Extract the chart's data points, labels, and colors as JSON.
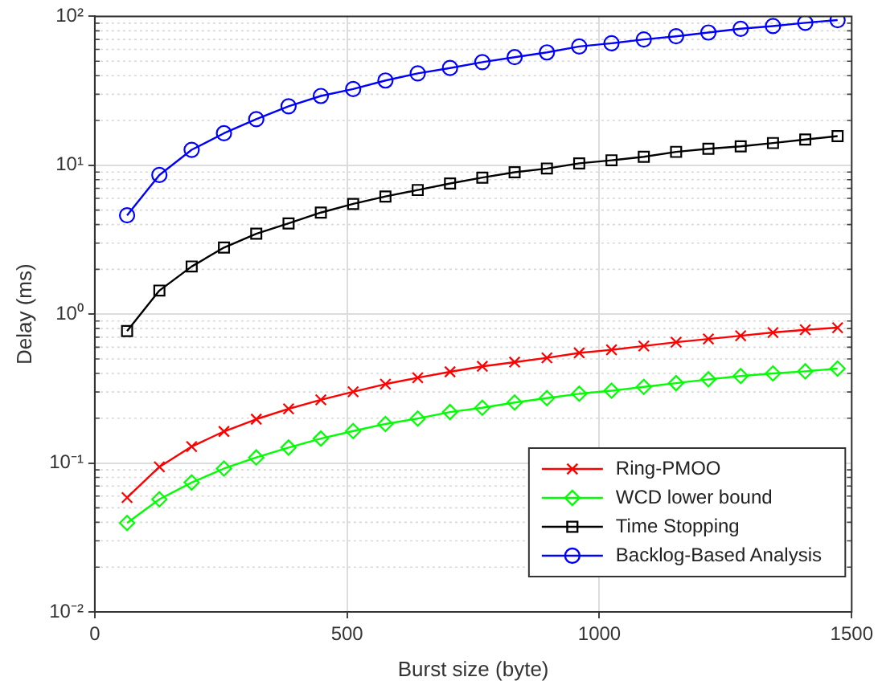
{
  "chart_data": {
    "type": "line",
    "xlabel": "Burst size (byte)",
    "ylabel": "Delay (ms)",
    "x": [
      64,
      128,
      192,
      256,
      320,
      384,
      448,
      512,
      576,
      640,
      704,
      768,
      832,
      896,
      960,
      1024,
      1088,
      1152,
      1216,
      1280,
      1344,
      1408,
      1472
    ],
    "xlim": [
      0,
      1500
    ],
    "xticks": [
      0,
      500,
      1000,
      1500
    ],
    "log": "y",
    "ylim": [
      0.01,
      100
    ],
    "yticks": [
      {
        "value": 0.01,
        "label": "10⁻²"
      },
      {
        "value": 0.1,
        "label": "10⁻¹"
      },
      {
        "value": 1,
        "label": "10⁰"
      },
      {
        "value": 10,
        "label": "10¹"
      },
      {
        "value": 100,
        "label": "10²"
      }
    ],
    "grid": true,
    "legend": "bottom right",
    "line_style": "solid",
    "series": [
      {
        "name": "Ring-PMOO",
        "color": "#ff0000",
        "marker": "cross",
        "values": [
          0.0586,
          0.0942,
          0.129,
          0.163,
          0.197,
          0.231,
          0.266,
          0.301,
          0.339,
          0.374,
          0.41,
          0.446,
          0.476,
          0.509,
          0.549,
          0.576,
          0.611,
          0.648,
          0.681,
          0.716,
          0.753,
          0.785,
          0.811
        ]
      },
      {
        "name": "WCD lower bound",
        "color": "#00ff00",
        "marker": "diamond",
        "values": [
          0.0396,
          0.0571,
          0.074,
          0.0918,
          0.109,
          0.127,
          0.146,
          0.164,
          0.183,
          0.199,
          0.22,
          0.235,
          0.255,
          0.273,
          0.292,
          0.306,
          0.325,
          0.344,
          0.365,
          0.384,
          0.4,
          0.413,
          0.431
        ]
      },
      {
        "name": "Time Stopping",
        "color": "#000000",
        "marker": "square",
        "values": [
          0.77,
          1.44,
          2.09,
          2.8,
          3.47,
          4.07,
          4.81,
          5.5,
          6.17,
          6.82,
          7.54,
          8.26,
          8.98,
          9.51,
          10.3,
          10.8,
          11.4,
          12.3,
          12.9,
          13.4,
          14.1,
          14.9,
          15.7
        ]
      },
      {
        "name": "Backlog-Based Analysis",
        "color": "#0000ff",
        "marker": "circle",
        "values": [
          4.61,
          8.6,
          12.7,
          16.4,
          20.4,
          24.9,
          29.2,
          32.5,
          37.1,
          41.4,
          45,
          49.3,
          53.2,
          57.3,
          62.8,
          66,
          70,
          73.5,
          77.9,
          82.6,
          86.1,
          90.6,
          94.4
        ]
      }
    ]
  }
}
